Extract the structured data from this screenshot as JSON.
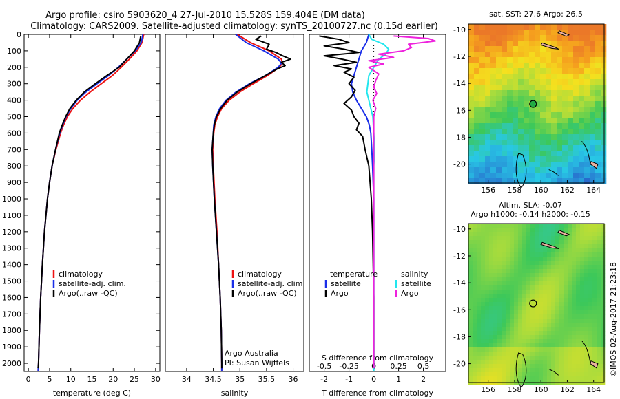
{
  "title": {
    "line1": "Argo profile: csiro 5903620_4 27-Jul-2010 15.528S 159.404E (DM data)",
    "line2": "Climatology: CARS2009. Satellite-adjusted climatology: synTS_20100727.nc (0.15d earlier)"
  },
  "colors": {
    "climatology": "#ee1111",
    "satellite": "#1a2ee8",
    "argo": "#000000",
    "sal_satellite": "#22e6ee",
    "sal_argo": "#ee22dd",
    "float_marker": "#22aa44"
  },
  "chart_data": [
    {
      "type": "line",
      "name": "temperature",
      "xlabel": "temperature (deg C)",
      "xlim": [
        -1,
        31
      ],
      "ylim": [
        0,
        2050
      ],
      "xticks": [
        0,
        5,
        10,
        15,
        20,
        25,
        30
      ],
      "yticks": [
        0,
        100,
        200,
        300,
        400,
        500,
        600,
        700,
        800,
        900,
        1000,
        1100,
        1200,
        1300,
        1400,
        1500,
        1600,
        1700,
        1800,
        1900,
        2000
      ],
      "legend": [
        "climatology",
        "satellite-adj. clim.",
        "Argo(..raw -QC)"
      ],
      "series": [
        {
          "name": "climatology",
          "depth": [
            0,
            50,
            100,
            150,
            200,
            250,
            300,
            350,
            400,
            450,
            500,
            550,
            600,
            700,
            800,
            900,
            1000,
            1200,
            1400,
            1600,
            1800,
            2000,
            2050
          ],
          "values": [
            27.2,
            26.8,
            25.6,
            23.8,
            21.9,
            19.8,
            17.2,
            14.6,
            12.3,
            10.5,
            9.2,
            8.3,
            7.6,
            6.5,
            5.6,
            5.0,
            4.5,
            3.8,
            3.3,
            2.9,
            2.6,
            2.4,
            2.3
          ]
        },
        {
          "name": "satellite-adj. clim.",
          "depth": [
            0,
            50,
            100,
            150,
            200,
            250,
            300,
            350,
            400,
            450,
            500,
            550,
            600,
            700,
            800,
            900,
            1000,
            1200,
            1400,
            1600,
            1800,
            2000,
            2050
          ],
          "values": [
            27.0,
            26.6,
            25.2,
            23.2,
            21.2,
            18.9,
            16.2,
            13.6,
            11.5,
            10.0,
            8.9,
            8.1,
            7.4,
            6.4,
            5.6,
            5.0,
            4.5,
            3.8,
            3.3,
            2.9,
            2.6,
            2.4,
            2.3
          ]
        },
        {
          "name": "Argo",
          "depth": [
            10,
            50,
            100,
            150,
            200,
            250,
            300,
            350,
            400,
            450,
            500,
            550,
            600,
            700,
            800,
            900,
            1000,
            1200,
            1400,
            1600,
            1800,
            2000,
            2030
          ],
          "values": [
            26.5,
            26.2,
            25.0,
            23.2,
            21.4,
            18.5,
            15.8,
            13.2,
            11.3,
            9.8,
            8.8,
            8.0,
            7.3,
            6.4,
            5.6,
            5.0,
            4.5,
            3.8,
            3.3,
            2.9,
            2.6,
            2.4,
            2.3
          ]
        }
      ]
    },
    {
      "type": "line",
      "name": "salinity",
      "xlabel": "salinity",
      "xlim": [
        33.6,
        36.2
      ],
      "ylim": [
        0,
        2050
      ],
      "xticks": [
        34,
        34.5,
        35,
        35.5,
        36
      ],
      "legend": [
        "climatology",
        "satellite-adj. clim.",
        "Argo(..raw -QC)"
      ],
      "series": [
        {
          "name": "climatology",
          "depth": [
            0,
            50,
            100,
            150,
            175,
            200,
            250,
            300,
            350,
            400,
            450,
            500,
            550,
            600,
            700,
            800,
            1000,
            1200,
            1400,
            1600,
            1800,
            2000,
            2050
          ],
          "values": [
            34.95,
            35.2,
            35.55,
            35.78,
            35.8,
            35.74,
            35.52,
            35.25,
            35.0,
            34.8,
            34.66,
            34.58,
            34.53,
            34.51,
            34.49,
            34.5,
            34.53,
            34.57,
            34.6,
            34.63,
            34.65,
            34.66,
            34.66
          ]
        },
        {
          "name": "satellite-adj. clim.",
          "depth": [
            0,
            50,
            100,
            150,
            175,
            200,
            250,
            300,
            350,
            400,
            450,
            500,
            550,
            600,
            700,
            800,
            1000,
            1200,
            1400,
            1600,
            1800,
            2000,
            2050
          ],
          "values": [
            34.92,
            35.12,
            35.45,
            35.72,
            35.78,
            35.72,
            35.48,
            35.18,
            34.93,
            34.74,
            34.62,
            34.55,
            34.51,
            34.5,
            34.48,
            34.49,
            34.52,
            34.56,
            34.6,
            34.63,
            34.65,
            34.66,
            34.66
          ]
        },
        {
          "name": "Argo",
          "depth": [
            10,
            30,
            60,
            90,
            110,
            130,
            150,
            170,
            190,
            210,
            250,
            300,
            350,
            400,
            450,
            500,
            550,
            600,
            700,
            800,
            1000,
            1200,
            1400,
            1600,
            1800,
            2000,
            2030
          ],
          "values": [
            35.4,
            35.3,
            35.55,
            35.5,
            35.68,
            35.8,
            35.95,
            35.78,
            35.85,
            35.7,
            35.48,
            35.2,
            34.95,
            34.76,
            34.64,
            34.56,
            34.52,
            34.5,
            34.48,
            34.49,
            34.52,
            34.56,
            34.6,
            34.63,
            34.65,
            34.66,
            34.66
          ]
        }
      ],
      "annotation": [
        "Argo Australia",
        "PI: Susan Wijffels"
      ]
    },
    {
      "type": "line",
      "name": "differences",
      "xlabel": "T difference from climatology",
      "x2label": "S difference from climatology",
      "xlim": [
        -2.6,
        2.9
      ],
      "x2lim": [
        -0.65,
        0.725
      ],
      "ylim": [
        0,
        2050
      ],
      "xticks": [
        -2,
        -1,
        0,
        1,
        2
      ],
      "x2ticks": [
        -0.5,
        -0.25,
        0,
        0.25,
        0.5
      ],
      "legend_t": {
        "title": "temperature",
        "items": [
          "satellite",
          "Argo"
        ]
      },
      "legend_s": {
        "title": "salinity",
        "items": [
          "satellite",
          "Argo"
        ]
      },
      "series": [
        {
          "name": "T satellite",
          "units": "degC",
          "depth": [
            0,
            50,
            100,
            150,
            200,
            250,
            300,
            350,
            400,
            450,
            500,
            550,
            600,
            700,
            800,
            1000,
            2050
          ],
          "values": [
            -0.2,
            -0.3,
            -0.5,
            -0.6,
            -0.7,
            -0.8,
            -0.9,
            -0.85,
            -0.7,
            -0.5,
            -0.3,
            -0.18,
            -0.12,
            -0.08,
            -0.05,
            0,
            0
          ]
        },
        {
          "name": "T Argo",
          "units": "degC",
          "depth": [
            10,
            30,
            50,
            70,
            90,
            110,
            130,
            150,
            170,
            190,
            210,
            230,
            260,
            300,
            340,
            380,
            420,
            460,
            500,
            540,
            580,
            620,
            700,
            800,
            1000,
            1200,
            1600,
            2030
          ],
          "values": [
            -2.2,
            -1.4,
            -1.0,
            -2.0,
            -1.2,
            -0.6,
            -2.0,
            -1.3,
            -0.7,
            -1.6,
            -0.9,
            -1.2,
            -0.8,
            -1.0,
            -0.75,
            -0.9,
            -1.2,
            -0.9,
            -0.8,
            -0.6,
            -0.7,
            -0.45,
            -0.35,
            -0.2,
            -0.1,
            -0.05,
            0,
            0
          ]
        },
        {
          "name": "S satellite",
          "units": "psu",
          "depth": [
            0,
            30,
            60,
            90,
            120,
            150,
            200,
            250,
            300,
            350,
            400,
            450,
            500,
            600,
            700,
            800,
            1000,
            2050
          ],
          "values": [
            -0.05,
            -0.02,
            0.1,
            0.15,
            0.12,
            0.05,
            0,
            -0.05,
            -0.06,
            -0.07,
            -0.05,
            -0.03,
            -0.01,
            0,
            0.01,
            0,
            0,
            0
          ]
        },
        {
          "name": "S Argo",
          "units": "psu",
          "depth": [
            10,
            25,
            40,
            60,
            80,
            100,
            120,
            140,
            160,
            180,
            200,
            240,
            280,
            320,
            360,
            400,
            450,
            500,
            600,
            700,
            800,
            1000,
            2030
          ],
          "values": [
            0.2,
            0.55,
            0.62,
            0.35,
            0.38,
            0.3,
            0.05,
            0.2,
            -0.05,
            0.1,
            -0.05,
            0.05,
            0.02,
            0.0,
            0.03,
            -0.01,
            0.02,
            0,
            0,
            0,
            0,
            0,
            0
          ]
        }
      ]
    },
    {
      "type": "heatmap",
      "name": "sst_map",
      "label": "sat. SST: 27.6 Argo: 26.5",
      "xlim": [
        154.5,
        164.8
      ],
      "ylim": [
        -21.4,
        -9.6
      ],
      "xticks": [
        156,
        158,
        160,
        162,
        164
      ],
      "yticks": [
        -10,
        -12,
        -14,
        -16,
        -18,
        -20
      ],
      "float_lon": 159.404,
      "float_lat": -15.528
    },
    {
      "type": "heatmap",
      "name": "sla_map",
      "label": "Altim. SLA: -0.07",
      "label2": "Argo h1000: -0.14 h2000: -0.15",
      "xlim": [
        154.5,
        164.8
      ],
      "ylim": [
        -21.4,
        -9.6
      ],
      "xticks": [
        156,
        158,
        160,
        162,
        164
      ],
      "yticks": [
        -10,
        -12,
        -14,
        -16,
        -18,
        -20
      ],
      "float_lon": 159.404,
      "float_lat": -15.528
    }
  ],
  "credit": "©IMOS 02-Aug-2017 21:23:18"
}
